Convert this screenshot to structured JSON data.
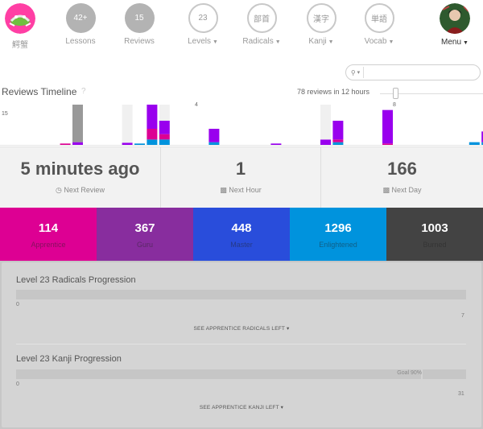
{
  "nav": {
    "logo_label": "鰐蟹",
    "items": [
      {
        "circle": "42+",
        "label": "Lessons",
        "style": "filled"
      },
      {
        "circle": "15",
        "label": "Reviews",
        "style": "filled"
      },
      {
        "circle": "23",
        "label": "Levels",
        "style": "outline"
      },
      {
        "circle": "部首",
        "label": "Radicals",
        "style": "outline"
      },
      {
        "circle": "漢字",
        "label": "Kanji",
        "style": "outline"
      },
      {
        "circle": "単語",
        "label": "Vocab",
        "style": "outline"
      }
    ],
    "menu_label": "Menu"
  },
  "search": {
    "icon": "search-icon",
    "placeholder": ""
  },
  "timeline": {
    "title": "Reviews Timeline",
    "help": "?",
    "summary": "78 reviews in 12 hours",
    "y_max_label": "15",
    "markers": [
      {
        "hour_label": "4"
      },
      {
        "hour_label": "8"
      }
    ],
    "colors": {
      "apprentice": "#dd0093",
      "guru": "#9900ee",
      "master": "#2255dd",
      "enlightened": "#0093dd",
      "burned": "#434343",
      "gray": "#999999",
      "light": "#f0f0f0"
    }
  },
  "chart_data": {
    "type": "bar",
    "title": "Reviews Timeline",
    "ylim": [
      0,
      15
    ],
    "series_names": [
      "apprentice",
      "guru",
      "enlightened",
      "master",
      "gray",
      "light"
    ],
    "bars": [
      {
        "slot": 4,
        "stack": [
          {
            "k": "apprentice",
            "v": 0.5
          }
        ]
      },
      {
        "slot": 5,
        "stack": [
          {
            "k": "guru",
            "v": 1
          },
          {
            "k": "gray",
            "v": 14
          }
        ]
      },
      {
        "slot": 9,
        "stack": [
          {
            "k": "guru",
            "v": 0.8
          },
          {
            "k": "light",
            "v": 14.2
          }
        ]
      },
      {
        "slot": 10,
        "stack": [
          {
            "k": "enlightened",
            "v": 0.5
          }
        ]
      },
      {
        "slot": 11,
        "stack": [
          {
            "k": "enlightened",
            "v": 2
          },
          {
            "k": "apprentice",
            "v": 4
          },
          {
            "k": "guru",
            "v": 9
          }
        ]
      },
      {
        "slot": 12,
        "stack": [
          {
            "k": "enlightened",
            "v": 2
          },
          {
            "k": "apprentice",
            "v": 2
          },
          {
            "k": "guru",
            "v": 5
          },
          {
            "k": "light",
            "v": 6
          }
        ]
      },
      {
        "slot": 16,
        "stack": [
          {
            "k": "enlightened",
            "v": 1
          },
          {
            "k": "guru",
            "v": 5
          }
        ]
      },
      {
        "slot": 21,
        "stack": [
          {
            "k": "guru",
            "v": 0.5
          }
        ]
      },
      {
        "slot": 25,
        "stack": [
          {
            "k": "guru",
            "v": 2
          },
          {
            "k": "light",
            "v": 13
          }
        ]
      },
      {
        "slot": 26,
        "stack": [
          {
            "k": "enlightened",
            "v": 1
          },
          {
            "k": "apprentice",
            "v": 1
          },
          {
            "k": "guru",
            "v": 7
          }
        ]
      },
      {
        "slot": 30,
        "stack": [
          {
            "k": "apprentice",
            "v": 0.5
          },
          {
            "k": "guru",
            "v": 12.5
          }
        ]
      },
      {
        "slot": 37,
        "stack": [
          {
            "k": "enlightened",
            "v": 1
          }
        ]
      },
      {
        "slot": 38,
        "stack": [
          {
            "k": "enlightened",
            "v": 1
          },
          {
            "k": "guru",
            "v": 4
          }
        ]
      }
    ]
  },
  "reviews": {
    "next_review": {
      "value": "5 minutes ago",
      "label": "Next Review",
      "icon": "clock-icon"
    },
    "next_hour": {
      "value": "1",
      "label": "Next Hour",
      "icon": "inbox-icon"
    },
    "next_day": {
      "value": "166",
      "label": "Next Day",
      "icon": "inbox-icon"
    }
  },
  "srs": [
    {
      "count": "114",
      "label": "Apprentice",
      "color": "#dd0093"
    },
    {
      "count": "367",
      "label": "Guru",
      "color": "#882d9e"
    },
    {
      "count": "448",
      "label": "Master",
      "color": "#294ddb"
    },
    {
      "count": "1296",
      "label": "Enlightened",
      "color": "#0093dd"
    },
    {
      "count": "1003",
      "label": "Burned",
      "color": "#434343"
    }
  ],
  "progression": {
    "radicals": {
      "title": "Level 23 Radicals Progression",
      "start": "0",
      "end": "7",
      "link": "SEE APPRENTICE RADICALS LEFT"
    },
    "kanji": {
      "title": "Level 23 Kanji Progression",
      "start": "0",
      "end": "31",
      "goal": "Goal 90%",
      "goal_fraction": 0.9,
      "link": "SEE APPRENTICE KANJI LEFT"
    }
  }
}
